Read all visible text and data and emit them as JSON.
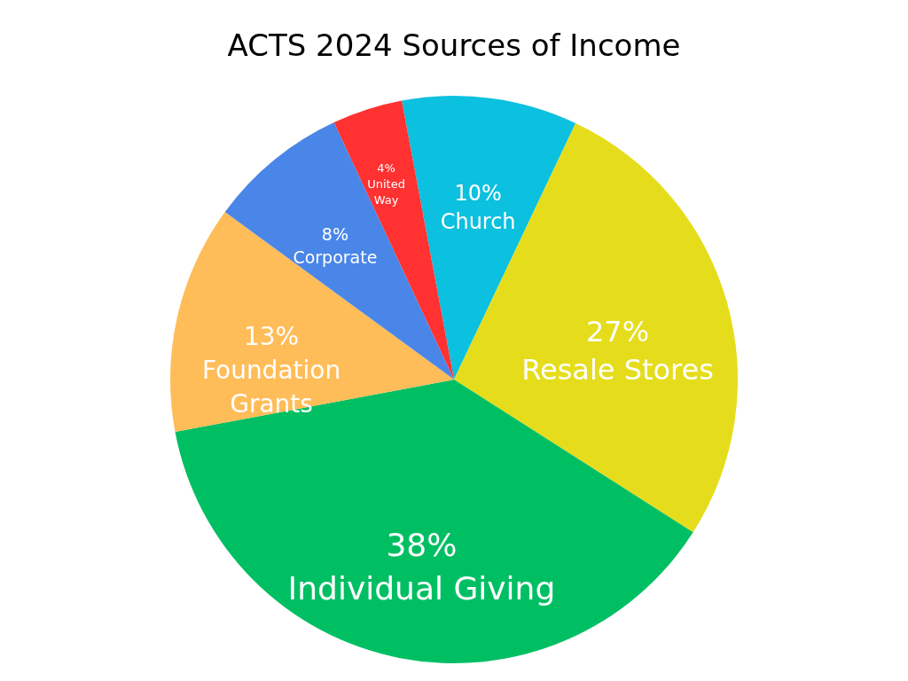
{
  "chart_data": {
    "type": "pie",
    "title": "ACTS 2024 Sources of Income",
    "categories": [
      "Church",
      "Resale Stores",
      "Individual Giving",
      "Foundation Grants",
      "Corporate",
      "United Way"
    ],
    "values": [
      10,
      27,
      38,
      13,
      8,
      4
    ],
    "colors": [
      "#0cc0df",
      "#e5dd1c",
      "#00bf63",
      "#ffbd59",
      "#4a86e8",
      "#ff3131"
    ],
    "value_labels": [
      "10%",
      "27%",
      "38%",
      "13%",
      "8%",
      "4%"
    ],
    "legend": false
  }
}
